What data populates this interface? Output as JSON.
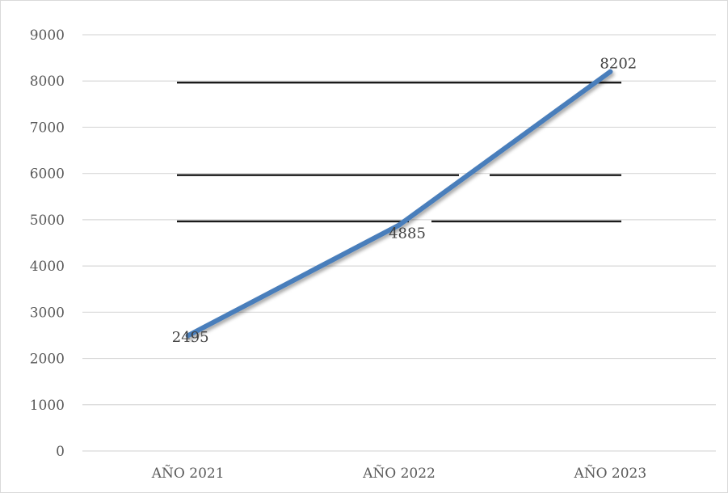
{
  "chart_data": {
    "type": "line",
    "title": "",
    "xlabel": "",
    "ylabel": "",
    "categories": [
      "AÑO 2021",
      "AÑO 2022",
      "AÑO 2023"
    ],
    "series": [
      {
        "values": [
          2495,
          4885,
          8202
        ],
        "color": "#4a7ebb"
      }
    ],
    "data_labels": [
      "2495",
      "4885",
      "8202"
    ],
    "ylim": [
      0,
      9000
    ],
    "y_ticks": [
      0,
      1000,
      2000,
      3000,
      4000,
      5000,
      6000,
      7000,
      8000,
      9000
    ],
    "y_tick_labels": [
      "0",
      "1000",
      "2000",
      "3000",
      "4000",
      "5000",
      "6000",
      "7000",
      "8000",
      "9000"
    ],
    "grid": true,
    "legend": "none",
    "colors": {
      "line": "#4a7ebb",
      "gridline": "#d9d9d9",
      "overlay_bar": "#1a1a1a",
      "axis_text": "#595959"
    },
    "overlay_lines_at": [
      8000,
      6000,
      5000
    ]
  }
}
